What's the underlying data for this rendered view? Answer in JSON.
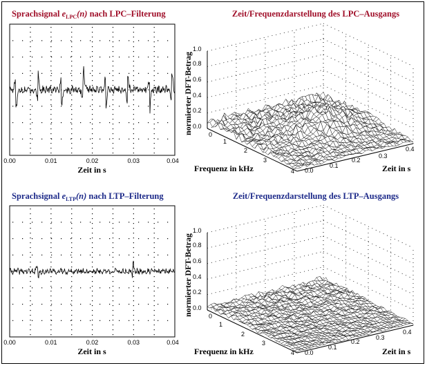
{
  "colors": {
    "lpc_title": "#a0102a",
    "ltp_title": "#1e2b8a",
    "ink": "#000000",
    "grid": "#000000"
  },
  "chart_data": [
    {
      "id": "lpc_time",
      "type": "line",
      "title_prefix": "Sprachsignal ",
      "title_symbol": "e",
      "title_sub": "LPC",
      "title_arg": "(n)",
      "title_suffix": " nach LPC–Filterung",
      "xlabel": "Zeit in s",
      "xlim": [
        0,
        0.04
      ],
      "xticks": [
        "0.00",
        "0.01",
        "0.02",
        "0.03",
        "0.04"
      ],
      "grid": true,
      "signal": {
        "samples": 320,
        "noise_amplitude": 0.08,
        "pulse_times": [
          0.0015,
          0.0068,
          0.0125,
          0.0178,
          0.0232,
          0.0285,
          0.0339,
          0.0392
        ],
        "pulse_amplitude": 0.5
      }
    },
    {
      "id": "lpc_tf",
      "type": "surface",
      "title": "Zeit/Frequenzdarstellung des LPC–Ausgangs",
      "zlabel": "normierter DFT-Betrag",
      "xlabel": "Frequenz in kHz",
      "ylabel": "Zeit in s",
      "zticks": [
        "0.0",
        "0.2",
        "0.4",
        "0.6",
        "0.8",
        "1.0"
      ],
      "freq_ticks": [
        "0",
        "1",
        "2",
        "3",
        "4"
      ],
      "time_ticks": [
        "0.0",
        "0.1",
        "0.2",
        "0.3",
        "0.4"
      ],
      "zlim": [
        0,
        1
      ],
      "surface": {
        "base_level": 0.12,
        "peak": 0.38,
        "peak_freq": 0.5,
        "peak_time": 0.27
      }
    },
    {
      "id": "ltp_time",
      "type": "line",
      "title_prefix": "Sprachsignal ",
      "title_symbol": "e",
      "title_sub": "LTP",
      "title_arg": "(n)",
      "title_suffix": " nach LTP–Filterung",
      "xlabel": "Zeit in s",
      "xlim": [
        0,
        0.04
      ],
      "xticks": [
        "0.00",
        "0.01",
        "0.02",
        "0.03",
        "0.04"
      ],
      "grid": true,
      "signal": {
        "samples": 320,
        "noise_amplitude": 0.06,
        "pulse_times": [
          0.0068,
          0.0298
        ],
        "pulse_amplitude": 0.22
      }
    },
    {
      "id": "ltp_tf",
      "type": "surface",
      "title": "Zeit/Frequenzdarstellung des LTP–Ausgangs",
      "zlabel": "normierter DFT-Betrag",
      "xlabel": "Frequenz in kHz",
      "ylabel": "Zeit in s",
      "zticks": [
        "0.0",
        "0.2",
        "0.4",
        "0.6",
        "0.8",
        "1.0"
      ],
      "freq_ticks": [
        "0",
        "1",
        "2",
        "3",
        "4"
      ],
      "time_ticks": [
        "0.0",
        "0.1",
        "0.2",
        "0.3",
        "0.4"
      ],
      "zlim": [
        0,
        1
      ],
      "surface": {
        "base_level": 0.07,
        "peak": 0.1,
        "peak_freq": 0.4,
        "peak_time": 0.35
      }
    }
  ]
}
